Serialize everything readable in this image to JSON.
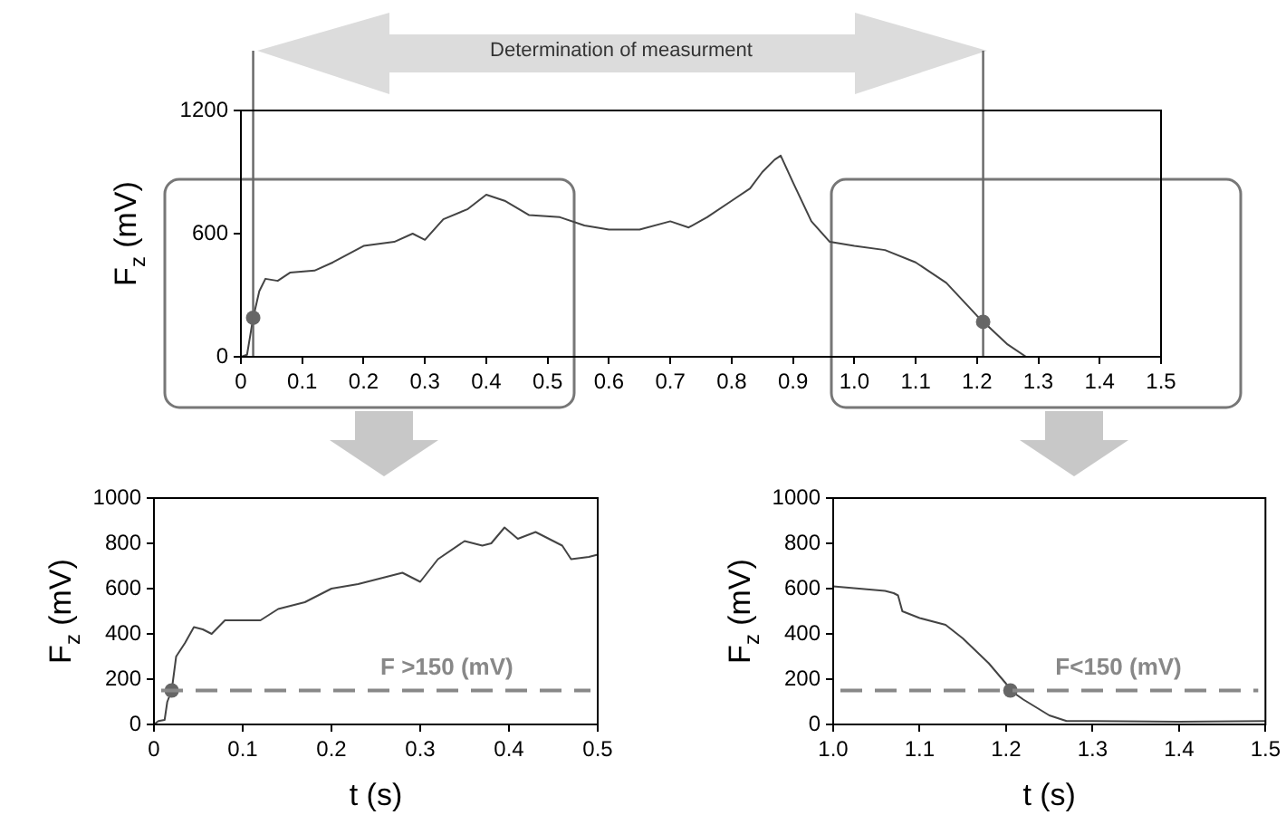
{
  "chart_data": [
    {
      "type": "line",
      "ylabel": "F$_{z}$ (mV)",
      "annotations": [
        "Determination of measurment"
      ],
      "xlim": [
        0,
        1.5
      ],
      "ylim": [
        0,
        1200
      ],
      "xticks": [
        0,
        0.1,
        0.2,
        0.3,
        0.4,
        0.5,
        0.6,
        0.7,
        0.8,
        0.9,
        {
          "value": 1,
          "label": "1.0"
        },
        1.1,
        1.2,
        1.3,
        1.4,
        1.5
      ],
      "yticks": [
        0,
        600,
        1200
      ],
      "ref_lines": [
        {
          "axis": "x",
          "value": 0.02,
          "color": "#666666"
        },
        {
          "axis": "x",
          "value": 1.21,
          "color": "#666666"
        }
      ],
      "series": [
        {
          "type": "line",
          "color": "#444444",
          "x": [
            0,
            0.01,
            0.015,
            0.02,
            0.03,
            0.04,
            0.06,
            0.08,
            0.12,
            0.15,
            0.2,
            0.25,
            0.28,
            0.3,
            0.33,
            0.37,
            0.4,
            0.43,
            0.47,
            0.52,
            0.56,
            0.6,
            0.65,
            0.7,
            0.73,
            0.76,
            0.8,
            0.83,
            0.85,
            0.87,
            0.88,
            0.9,
            0.93,
            0.96,
            1.0,
            1.05,
            1.1,
            1.15,
            1.2,
            1.25,
            1.28,
            1.5
          ],
          "values": [
            0,
            10,
            100,
            190,
            320,
            380,
            370,
            410,
            420,
            460,
            540,
            560,
            600,
            570,
            670,
            720,
            790,
            760,
            690,
            680,
            640,
            620,
            620,
            660,
            630,
            680,
            760,
            820,
            900,
            960,
            980,
            850,
            660,
            560,
            540,
            520,
            460,
            360,
            200,
            60,
            0,
            0
          ]
        },
        {
          "type": "scatter",
          "color": "#666666",
          "x": [
            0.02,
            1.21
          ],
          "values": [
            190,
            170
          ]
        }
      ]
    },
    {
      "type": "line",
      "xlabel": "t (s)",
      "ylabel": "F$_{z}$ (mV)",
      "xlim": [
        0,
        0.5
      ],
      "ylim": [
        0,
        1000
      ],
      "xticks": [
        0,
        0.1,
        0.2,
        0.3,
        0.4,
        0.5
      ],
      "yticks": [
        0,
        200,
        400,
        600,
        800,
        1000
      ],
      "ref_lines": [
        {
          "axis": "y",
          "value": 150,
          "label": "F >150 (mV)",
          "color": "#888888",
          "line_style": "dashed"
        }
      ],
      "series": [
        {
          "type": "line",
          "color": "#444444",
          "x": [
            0,
            0.005,
            0.012,
            0.015,
            0.02,
            0.025,
            0.035,
            0.045,
            0.055,
            0.065,
            0.08,
            0.1,
            0.12,
            0.14,
            0.17,
            0.2,
            0.23,
            0.26,
            0.28,
            0.3,
            0.32,
            0.35,
            0.37,
            0.38,
            0.395,
            0.41,
            0.43,
            0.46,
            0.47,
            0.49,
            0.5
          ],
          "values": [
            0,
            15,
            20,
            100,
            150,
            300,
            360,
            430,
            420,
            400,
            460,
            460,
            460,
            510,
            540,
            600,
            620,
            650,
            670,
            630,
            730,
            810,
            790,
            800,
            870,
            820,
            850,
            790,
            730,
            740,
            750
          ]
        },
        {
          "type": "scatter",
          "color": "#666666",
          "x": [
            0.02
          ],
          "values": [
            150
          ]
        }
      ]
    },
    {
      "type": "line",
      "xlabel": "t (s)",
      "ylabel": "F$_{z}$ (mV)",
      "xlim": [
        1,
        1.5
      ],
      "ylim": [
        0,
        1000
      ],
      "xticks": [
        {
          "value": 1,
          "label": "1.0"
        },
        1.1,
        1.2,
        1.3,
        1.4,
        1.5
      ],
      "yticks": [
        0,
        200,
        400,
        600,
        800,
        1000
      ],
      "ref_lines": [
        {
          "axis": "y",
          "value": 150,
          "label": "F<150 (mV)",
          "color": "#888888",
          "line_style": "dashed"
        }
      ],
      "series": [
        {
          "type": "line",
          "color": "#444444",
          "x": [
            1.0,
            1.03,
            1.06,
            1.07,
            1.075,
            1.08,
            1.1,
            1.13,
            1.15,
            1.18,
            1.2,
            1.205,
            1.22,
            1.25,
            1.27,
            1.3,
            1.4,
            1.5
          ],
          "values": [
            610,
            600,
            590,
            580,
            570,
            500,
            470,
            440,
            380,
            270,
            180,
            150,
            110,
            40,
            15,
            15,
            12,
            15
          ]
        },
        {
          "type": "scatter",
          "color": "#666666",
          "x": [
            1.205
          ],
          "values": [
            150
          ]
        }
      ]
    }
  ]
}
